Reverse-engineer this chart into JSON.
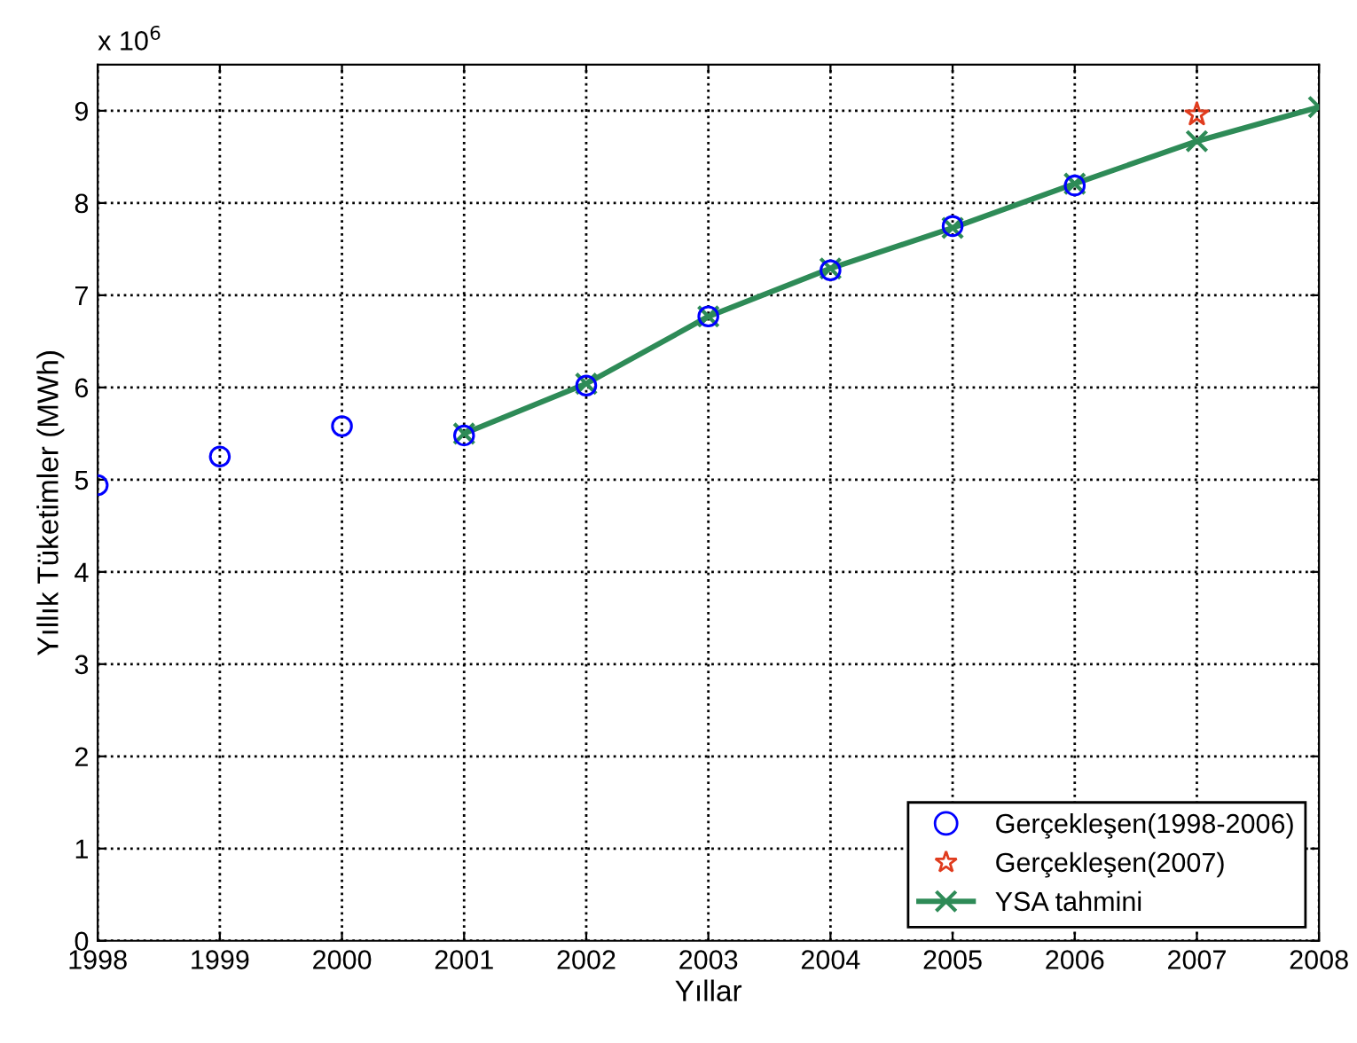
{
  "chart_data": {
    "type": "scatter",
    "xlabel": "Yıllar",
    "ylabel": "Yıllık Tüketimler (MWh)",
    "annotations": [
      "x 10$^{6}$"
    ],
    "xlim": [
      1998,
      2008
    ],
    "xticks": [
      1998,
      1999,
      2000,
      2001,
      2002,
      2003,
      2004,
      2005,
      2006,
      2007,
      2008
    ],
    "ylim": [
      0,
      9.5
    ],
    "yticks": [
      0,
      1,
      2,
      3,
      4,
      5,
      6,
      7,
      8,
      9
    ],
    "grid": true,
    "legend": "bottom right",
    "series": [
      {
        "name": "Gerçekleşen(1998-2006)",
        "marker": "circle",
        "color": "#0000ff",
        "x": [
          1998,
          1999,
          2000,
          2001,
          2002,
          2003,
          2004,
          2005,
          2006
        ],
        "values": [
          4.94,
          5.25,
          5.58,
          5.48,
          6.02,
          6.77,
          7.27,
          7.75,
          8.19
        ]
      },
      {
        "name": "Gerçekleşen(2007)",
        "marker": "star",
        "color": "#e03c1e",
        "x": [
          2007
        ],
        "values": [
          8.96
        ]
      },
      {
        "name": "YSA tahmini",
        "type": "line",
        "marker": "cross",
        "line_style": "solid",
        "color": "#2e8b57",
        "x": [
          2001,
          2002,
          2003,
          2004,
          2005,
          2006,
          2007,
          2008
        ],
        "values": [
          5.5,
          6.04,
          6.77,
          7.29,
          7.73,
          8.21,
          8.67,
          9.04
        ]
      }
    ]
  }
}
